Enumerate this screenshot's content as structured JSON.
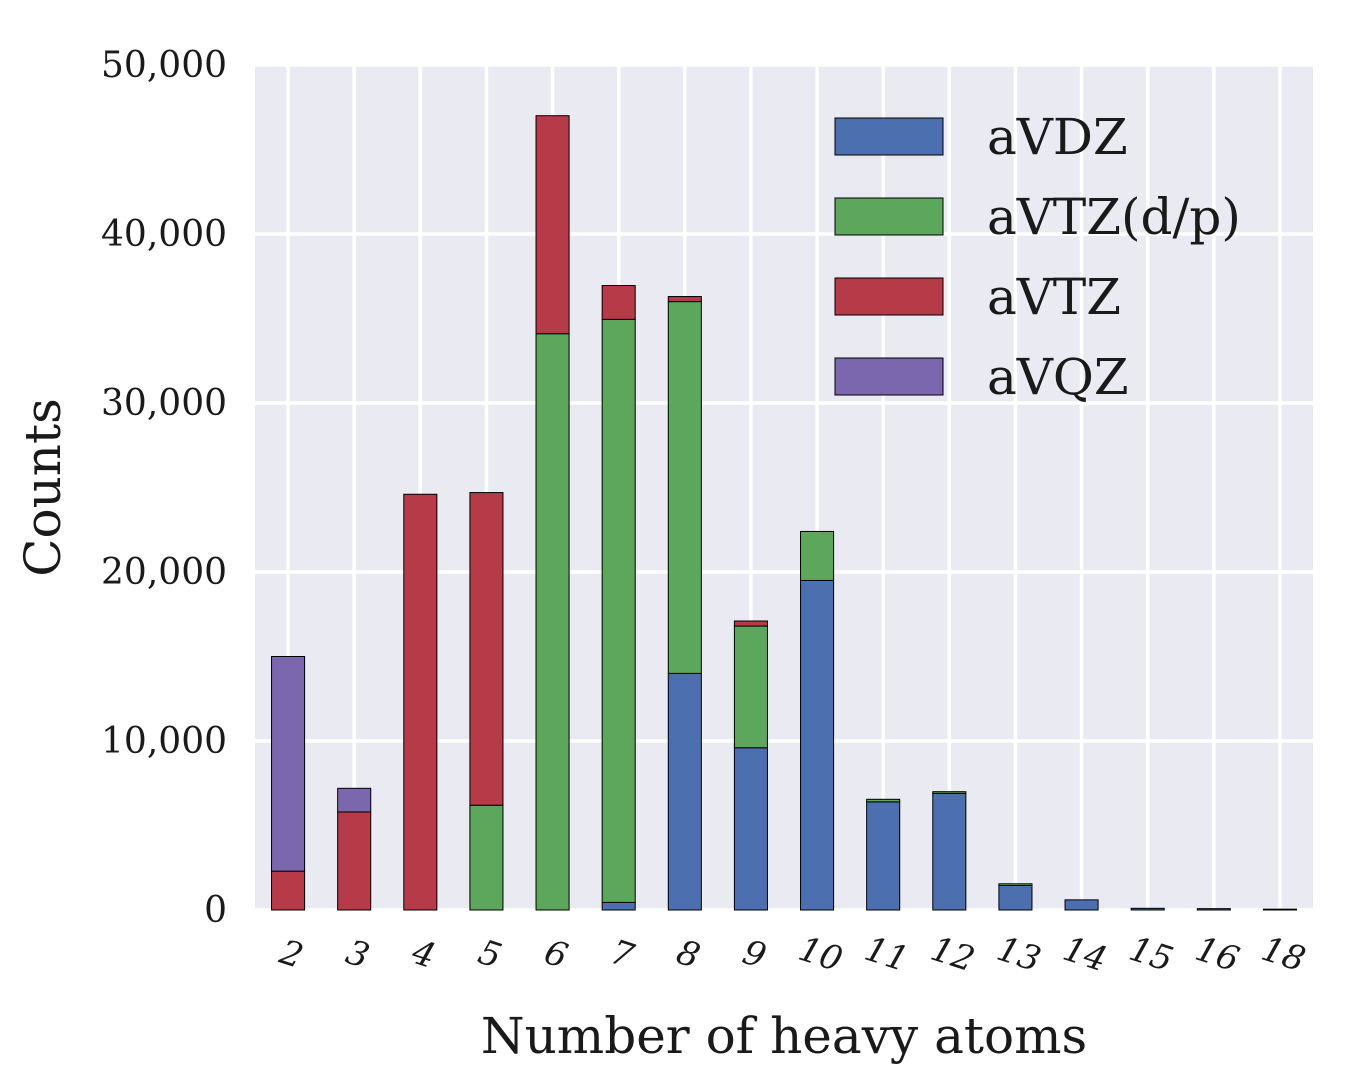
{
  "chart_data": {
    "type": "bar",
    "stacked": true,
    "title": "",
    "xlabel": "Number of heavy atoms",
    "ylabel": "Counts",
    "ylim": [
      0,
      50000
    ],
    "yticks": [
      0,
      10000,
      20000,
      30000,
      40000,
      50000
    ],
    "ytick_labels": [
      "0",
      "10,000",
      "20,000",
      "30,000",
      "40,000",
      "50,000"
    ],
    "grid": true,
    "legend_position": "top-right",
    "categories": [
      "2",
      "3",
      "4",
      "5",
      "6",
      "7",
      "8",
      "9",
      "10",
      "11",
      "12",
      "13",
      "14",
      "15",
      "16",
      "18"
    ],
    "series": [
      {
        "name": "aVDZ",
        "color": "#4c6faf",
        "values": [
          0,
          0,
          0,
          0,
          0,
          450,
          14000,
          9600,
          19500,
          6400,
          6900,
          1450,
          600,
          100,
          80,
          50
        ]
      },
      {
        "name": "aVTZ(d/p)",
        "color": "#5ca75b",
        "values": [
          0,
          0,
          0,
          6200,
          34100,
          34500,
          22000,
          7200,
          2900,
          150,
          100,
          100,
          0,
          0,
          0,
          0
        ]
      },
      {
        "name": "aVTZ",
        "color": "#b73a48",
        "values": [
          2300,
          5800,
          24600,
          18500,
          12900,
          2000,
          300,
          300,
          0,
          0,
          0,
          0,
          0,
          0,
          0,
          0
        ]
      },
      {
        "name": "aVQZ",
        "color": "#7b67ae",
        "values": [
          12700,
          1400,
          0,
          0,
          0,
          0,
          0,
          0,
          0,
          0,
          0,
          0,
          0,
          0,
          0,
          0
        ]
      }
    ],
    "colors": {
      "plot_background": "#eaeaf2",
      "grid": "#ffffff",
      "bar_edge": "#000000"
    }
  }
}
